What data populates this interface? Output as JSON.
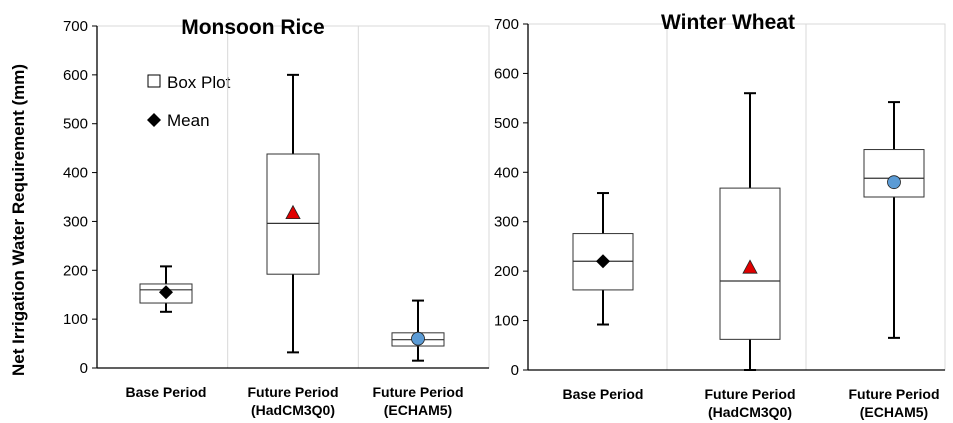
{
  "ylabel": "Net Irrigation Water Requirement (mm)",
  "legend": {
    "box_label": "Box Plot",
    "mean_label": "Mean"
  },
  "colors": {
    "base_mean": "#000000",
    "hadcm3_mean": "#e00000",
    "echam5_mean": "#5b9bd5"
  },
  "chart_data": [
    {
      "type": "box",
      "title": "Monsoon Rice",
      "ylim": [
        0,
        700
      ],
      "yticks": [
        0,
        100,
        200,
        300,
        400,
        500,
        600,
        700
      ],
      "grid": "vertical",
      "legend_position": "top-left",
      "categories": [
        {
          "line1": "Base Period",
          "line2": ""
        },
        {
          "line1": "Future Period",
          "line2": "(HadCM3Q0)"
        },
        {
          "line1": "Future Period",
          "line2": "(ECHAM5)"
        }
      ],
      "boxes": [
        {
          "min": 115,
          "q1": 133,
          "median": 160,
          "q3": 172,
          "max": 208,
          "mean": 155,
          "marker": "diamond"
        },
        {
          "min": 32,
          "q1": 192,
          "median": 296,
          "q3": 438,
          "max": 600,
          "mean": 318,
          "marker": "triangle"
        },
        {
          "min": 15,
          "q1": 45,
          "median": 58,
          "q3": 72,
          "max": 138,
          "mean": 60,
          "marker": "circle"
        }
      ]
    },
    {
      "type": "box",
      "title": "Winter Wheat",
      "ylim": [
        0,
        700
      ],
      "yticks": [
        0,
        100,
        200,
        300,
        400,
        500,
        600,
        700
      ],
      "grid": "vertical",
      "categories": [
        {
          "line1": "Base Period",
          "line2": ""
        },
        {
          "line1": "Future Period",
          "line2": "(HadCM3Q0)"
        },
        {
          "line1": "Future Period",
          "line2": "(ECHAM5)"
        }
      ],
      "boxes": [
        {
          "min": 92,
          "q1": 162,
          "median": 220,
          "q3": 276,
          "max": 358,
          "mean": 220,
          "marker": "diamond"
        },
        {
          "min": 0,
          "q1": 62,
          "median": 180,
          "q3": 368,
          "max": 560,
          "mean": 208,
          "marker": "triangle"
        },
        {
          "min": 65,
          "q1": 350,
          "median": 388,
          "q3": 446,
          "max": 542,
          "mean": 380,
          "marker": "circle"
        }
      ]
    }
  ]
}
